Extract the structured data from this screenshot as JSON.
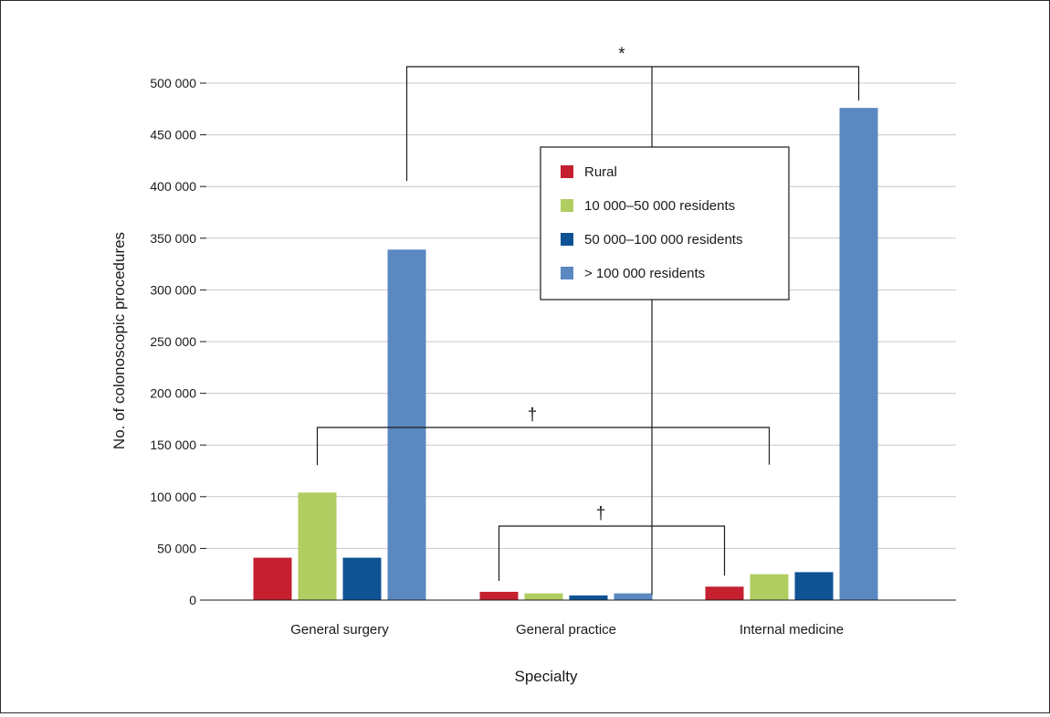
{
  "chart_data": {
    "type": "bar",
    "xlabel": "Specialty",
    "ylabel": "No. of colonoscopic procedures",
    "ylim": [
      0,
      500000
    ],
    "y_ticks": [
      0,
      50000,
      100000,
      150000,
      200000,
      250000,
      300000,
      350000,
      400000,
      450000,
      500000
    ],
    "y_tick_labels": [
      "0",
      "50 000",
      "100 000",
      "150 000",
      "200 000",
      "250 000",
      "300 000",
      "350 000",
      "400 000",
      "450 000",
      "500 000"
    ],
    "grid": true,
    "legend_position": "top-center",
    "categories": [
      "General surgery",
      "General practice",
      "Internal medicine"
    ],
    "series": [
      {
        "name": "Rural",
        "color": "#c4202f",
        "values": [
          41000,
          8000,
          13000
        ]
      },
      {
        "name": "10 000–50 000 residents",
        "color": "#b0cd62",
        "values": [
          104000,
          6500,
          25000
        ]
      },
      {
        "name": "50 000–100 000 residents",
        "color": "#0e5394",
        "values": [
          41000,
          4500,
          27000
        ]
      },
      {
        "name": "> 100 000 residents",
        "color": "#5b88c0",
        "values": [
          339000,
          6500,
          476000
        ]
      }
    ],
    "annotations": [
      {
        "symbol": "*",
        "from": {
          "category": 0,
          "series": 3
        },
        "to": {
          "category": 2,
          "series": 3
        }
      },
      {
        "symbol": "†",
        "from": {
          "category": 0,
          "series": 1
        },
        "to": {
          "category": 2,
          "series": 1
        }
      },
      {
        "symbol": "†",
        "from": {
          "category": 1,
          "series": 0
        },
        "to": {
          "category": 2,
          "series": 0
        }
      }
    ]
  }
}
